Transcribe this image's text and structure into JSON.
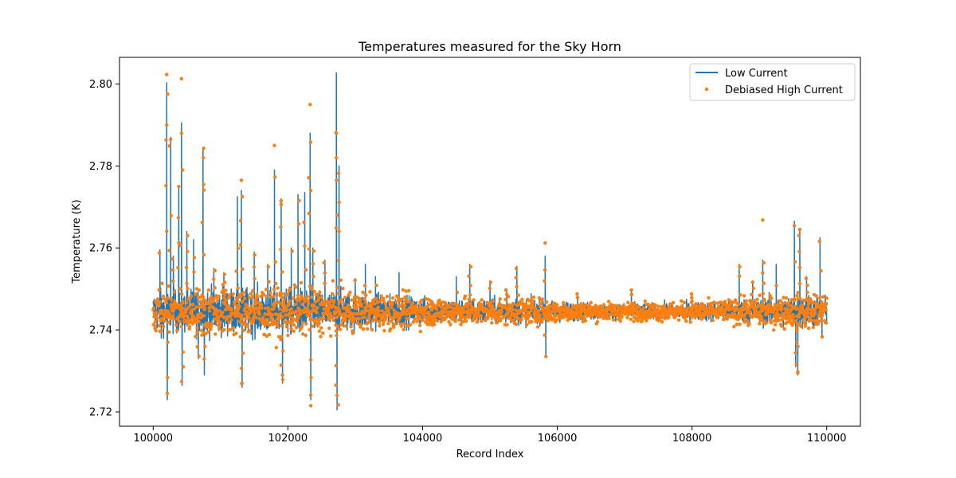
{
  "chart_data": {
    "type": "line",
    "title": "Temperatures measured for the Sky Horn",
    "xlabel": "Record Index",
    "ylabel": "Temperature (K)",
    "xlim": [
      99500,
      110500
    ],
    "ylim": [
      2.7165,
      2.8065
    ],
    "x_ticks": [
      100000,
      102000,
      104000,
      106000,
      108000,
      110000
    ],
    "x_tick_labels": [
      "100000",
      "102000",
      "104000",
      "106000",
      "108000",
      "110000"
    ],
    "y_ticks": [
      2.72,
      2.74,
      2.76,
      2.78,
      2.8
    ],
    "y_tick_labels": [
      "2.72",
      "2.74",
      "2.76",
      "2.78",
      "2.80"
    ],
    "grid": false,
    "legend_position": "top-right",
    "baseline": 2.7445,
    "series": [
      {
        "name": "Low Current",
        "kind": "line",
        "color": "#1f77b4",
        "profile_x": [
          100000,
          101000,
          102000,
          102800,
          103500,
          104500,
          105500,
          106200,
          107000,
          108000,
          108700,
          109300,
          109800,
          110000
        ],
        "profile_noise_K": [
          0.0035,
          0.004,
          0.004,
          0.0035,
          0.0028,
          0.0022,
          0.0022,
          0.0016,
          0.0014,
          0.0015,
          0.002,
          0.0026,
          0.0028,
          0.0026
        ],
        "spikes": [
          {
            "x": 100100,
            "value": 2.7595
          },
          {
            "x": 100120,
            "value": 2.738
          },
          {
            "x": 100200,
            "value": 2.8003
          },
          {
            "x": 100210,
            "value": 2.723
          },
          {
            "x": 100260,
            "value": 2.787
          },
          {
            "x": 100300,
            "value": 2.758
          },
          {
            "x": 100380,
            "value": 2.775
          },
          {
            "x": 100420,
            "value": 2.7905
          },
          {
            "x": 100430,
            "value": 2.7265
          },
          {
            "x": 100500,
            "value": 2.764
          },
          {
            "x": 100600,
            "value": 2.762
          },
          {
            "x": 100670,
            "value": 2.733
          },
          {
            "x": 100740,
            "value": 2.784
          },
          {
            "x": 100760,
            "value": 2.729
          },
          {
            "x": 100900,
            "value": 2.755
          },
          {
            "x": 101050,
            "value": 2.754
          },
          {
            "x": 101250,
            "value": 2.7725
          },
          {
            "x": 101310,
            "value": 2.774
          },
          {
            "x": 101320,
            "value": 2.726
          },
          {
            "x": 101500,
            "value": 2.759
          },
          {
            "x": 101700,
            "value": 2.756
          },
          {
            "x": 101800,
            "value": 2.779
          },
          {
            "x": 101900,
            "value": 2.772
          },
          {
            "x": 101920,
            "value": 2.727
          },
          {
            "x": 102050,
            "value": 2.76
          },
          {
            "x": 102150,
            "value": 2.773
          },
          {
            "x": 102250,
            "value": 2.7735
          },
          {
            "x": 102330,
            "value": 2.788
          },
          {
            "x": 102340,
            "value": 2.723
          },
          {
            "x": 102370,
            "value": 2.76
          },
          {
            "x": 102550,
            "value": 2.757
          },
          {
            "x": 102720,
            "value": 2.8027
          },
          {
            "x": 102730,
            "value": 2.7205
          },
          {
            "x": 102760,
            "value": 2.78
          },
          {
            "x": 103000,
            "value": 2.7525
          },
          {
            "x": 103150,
            "value": 2.756
          },
          {
            "x": 103300,
            "value": 2.753
          },
          {
            "x": 103650,
            "value": 2.754
          },
          {
            "x": 104150,
            "value": 2.747
          },
          {
            "x": 104500,
            "value": 2.753
          },
          {
            "x": 104700,
            "value": 2.756
          },
          {
            "x": 105000,
            "value": 2.752
          },
          {
            "x": 105250,
            "value": 2.75
          },
          {
            "x": 105400,
            "value": 2.7555
          },
          {
            "x": 105820,
            "value": 2.758
          },
          {
            "x": 105830,
            "value": 2.734
          },
          {
            "x": 106300,
            "value": 2.749
          },
          {
            "x": 107100,
            "value": 2.75
          },
          {
            "x": 108000,
            "value": 2.749
          },
          {
            "x": 108700,
            "value": 2.756
          },
          {
            "x": 108900,
            "value": 2.752
          },
          {
            "x": 109050,
            "value": 2.757
          },
          {
            "x": 109250,
            "value": 2.756
          },
          {
            "x": 109520,
            "value": 2.7665
          },
          {
            "x": 109540,
            "value": 2.731
          },
          {
            "x": 109570,
            "value": 2.729
          },
          {
            "x": 109600,
            "value": 2.764
          },
          {
            "x": 109700,
            "value": 2.753
          },
          {
            "x": 109900,
            "value": 2.7625
          },
          {
            "x": 109930,
            "value": 2.738
          }
        ]
      },
      {
        "name": "Debiased High Current",
        "kind": "scatter",
        "color": "#ff7f0e",
        "highlight_points": [
          {
            "x": 100200,
            "value": 2.8023
          },
          {
            "x": 100420,
            "value": 2.8013
          },
          {
            "x": 100200,
            "value": 2.79
          },
          {
            "x": 100260,
            "value": 2.7865
          },
          {
            "x": 100420,
            "value": 2.788
          },
          {
            "x": 100750,
            "value": 2.7843
          },
          {
            "x": 101800,
            "value": 2.785
          },
          {
            "x": 101310,
            "value": 2.7765
          },
          {
            "x": 102330,
            "value": 2.795
          },
          {
            "x": 102720,
            "value": 2.788
          },
          {
            "x": 102720,
            "value": 2.782
          },
          {
            "x": 101900,
            "value": 2.7715
          },
          {
            "x": 100380,
            "value": 2.775
          },
          {
            "x": 100750,
            "value": 2.7755
          },
          {
            "x": 102340,
            "value": 2.774
          },
          {
            "x": 102730,
            "value": 2.768
          },
          {
            "x": 109050,
            "value": 2.7668
          },
          {
            "x": 109600,
            "value": 2.7645
          },
          {
            "x": 105820,
            "value": 2.7612
          },
          {
            "x": 102340,
            "value": 2.7215
          },
          {
            "x": 102730,
            "value": 2.724
          },
          {
            "x": 100210,
            "value": 2.7245
          },
          {
            "x": 109570,
            "value": 2.7295
          },
          {
            "x": 105830,
            "value": 2.7335
          },
          {
            "x": 101320,
            "value": 2.727
          },
          {
            "x": 101920,
            "value": 2.729
          }
        ]
      }
    ]
  }
}
